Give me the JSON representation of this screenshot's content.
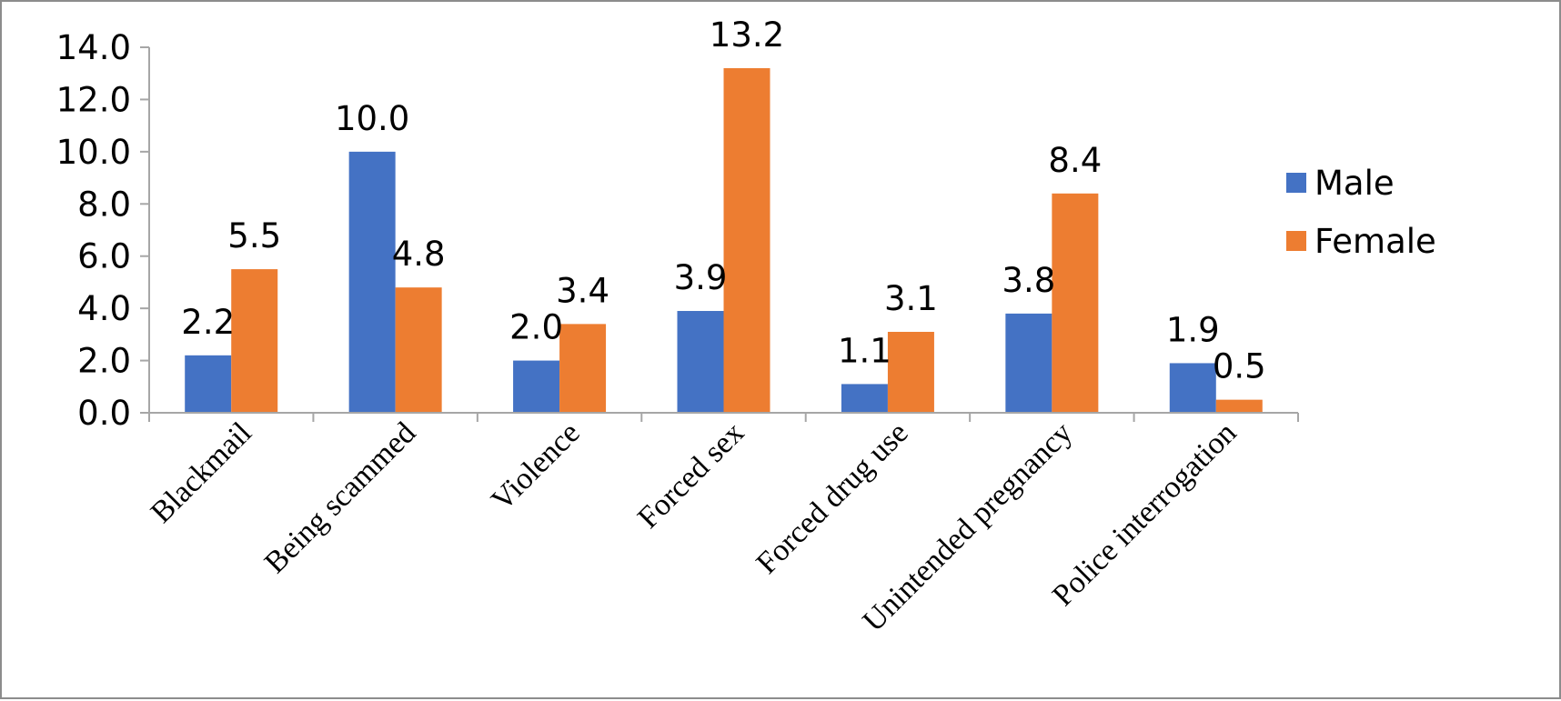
{
  "chart_data": {
    "type": "bar",
    "categories": [
      "Blackmail",
      "Being scammed",
      "Violence",
      "Forced sex",
      "Forced drug use",
      "Unintended pregnancy",
      "Police interrogation"
    ],
    "series": [
      {
        "name": "Male",
        "color": "#4472c4",
        "values": [
          2.2,
          10.0,
          2.0,
          3.9,
          1.1,
          3.8,
          1.9
        ]
      },
      {
        "name": "Female",
        "color": "#ed7d31",
        "values": [
          5.5,
          4.8,
          3.4,
          13.2,
          3.1,
          8.4,
          0.5
        ]
      }
    ],
    "title": "",
    "xlabel": "",
    "ylabel": "",
    "ylim": [
      0,
      14
    ],
    "yticks": [
      "0.0",
      "2.0",
      "4.0",
      "6.0",
      "8.0",
      "10.0",
      "12.0",
      "14.0"
    ],
    "grid": false,
    "legend_position": "right"
  }
}
